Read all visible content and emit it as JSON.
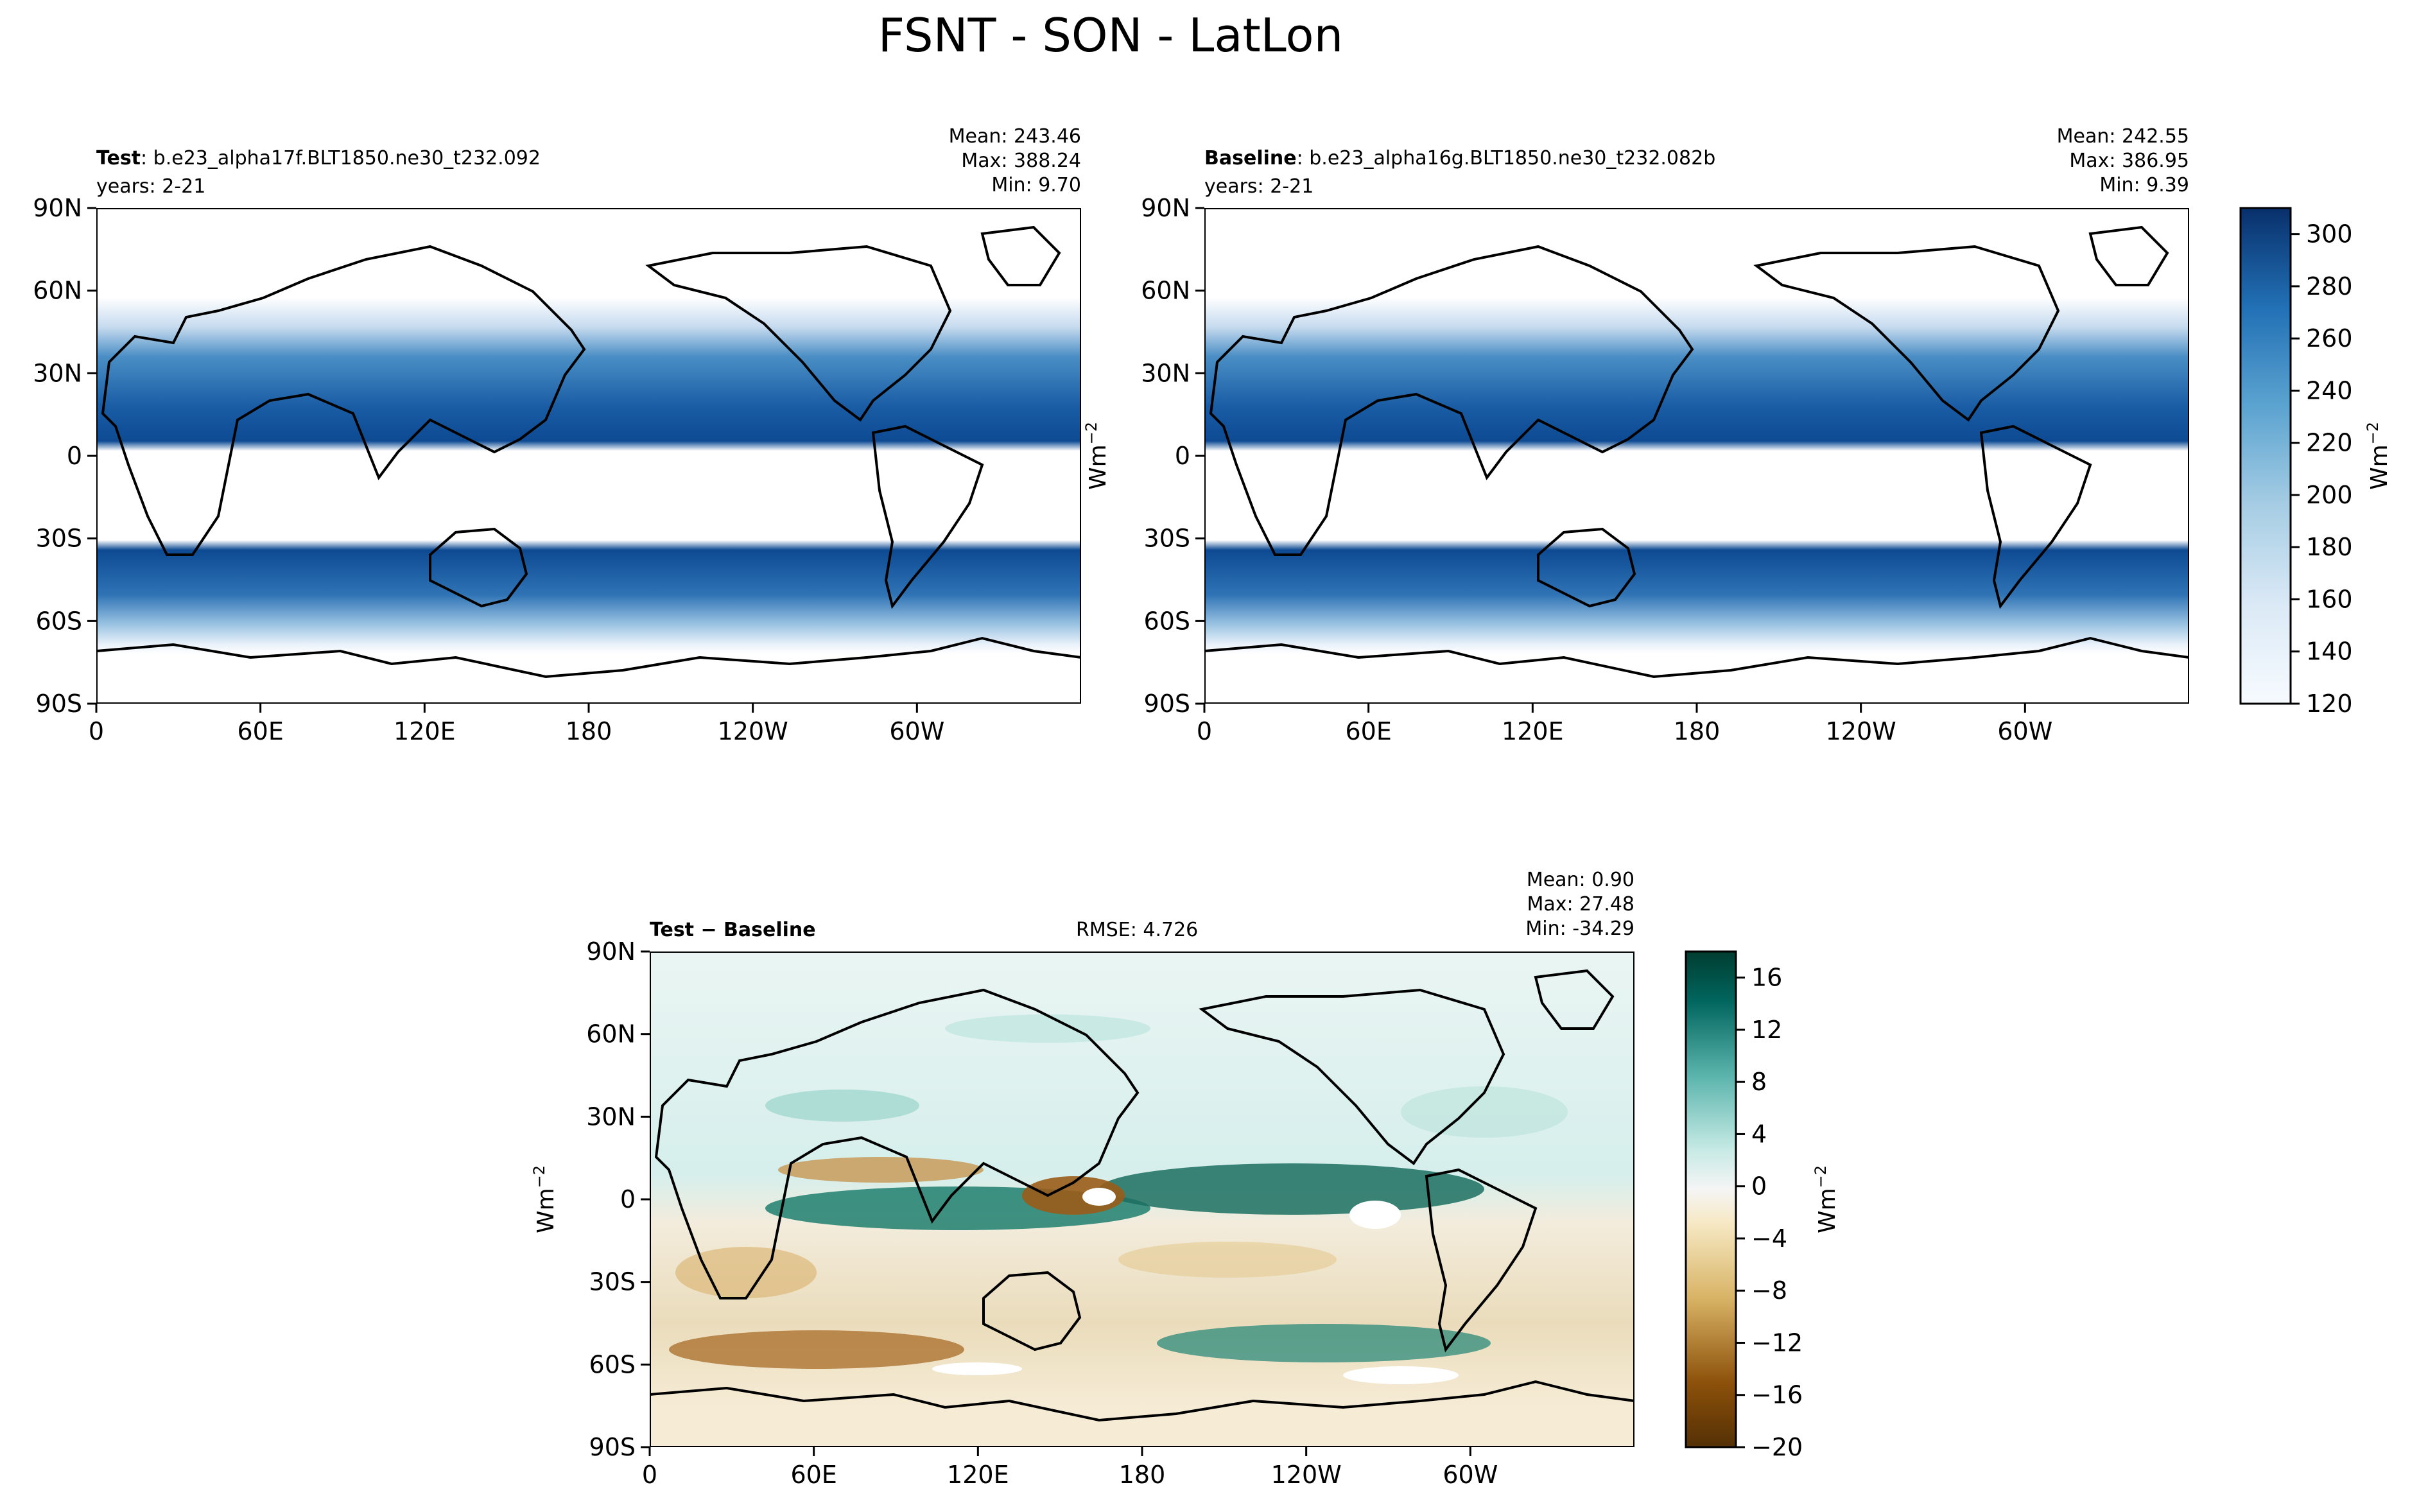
{
  "figure_title": "FSNT - SON - LatLon",
  "chart_data": [
    {
      "type": "heatmap",
      "id": "test",
      "title_bold": "Test",
      "title_rest": ": b.e23_alpha17f.BLT1850.ne30_t232.092",
      "subtitle": "years: 2-21",
      "stats": [
        "Mean: 243.46",
        "Max: 388.24",
        "Min:  9.70"
      ],
      "x_ticks": [
        "0",
        "60E",
        "120E",
        "180",
        "120W",
        "60W"
      ],
      "y_ticks": [
        "90N",
        "60N",
        "30N",
        "0",
        "30S",
        "60S",
        "90S"
      ],
      "colormap": "Blues",
      "units": "Wm-2",
      "mean": 243.46,
      "max": 388.24,
      "min": 9.7
    },
    {
      "type": "heatmap",
      "id": "baseline",
      "title_bold": "Baseline",
      "title_rest": ": b.e23_alpha16g.BLT1850.ne30_t232.082b",
      "subtitle": "years: 2-21",
      "stats": [
        "Mean: 242.55",
        "Max: 386.95",
        "Min:  9.39"
      ],
      "x_ticks": [
        "0",
        "60E",
        "120E",
        "180",
        "120W",
        "60W"
      ],
      "y_ticks": [
        "90N",
        "60N",
        "30N",
        "0",
        "30S",
        "60S",
        "90S"
      ],
      "colormap": "Blues",
      "units": "Wm-2",
      "mean": 242.55,
      "max": 386.95,
      "min": 9.39,
      "colorbar": {
        "ticks": [
          "300",
          "280",
          "260",
          "240",
          "220",
          "200",
          "180",
          "160",
          "140",
          "120"
        ],
        "label": "Wm",
        "label_sup": "−2",
        "range": [
          120,
          310
        ]
      }
    },
    {
      "type": "heatmap",
      "id": "diff",
      "title_bold": "Test − Baseline",
      "rmse": "RMSE: 4.726",
      "stats": [
        "Mean:  0.90",
        "Max: 27.48",
        "Min: -34.29"
      ],
      "x_ticks": [
        "0",
        "60E",
        "120E",
        "180",
        "120W",
        "60W"
      ],
      "y_ticks": [
        "90N",
        "60N",
        "30N",
        "0",
        "30S",
        "60S",
        "90S"
      ],
      "colormap": "BrBG",
      "units": "Wm-2",
      "mean": 0.9,
      "max": 27.48,
      "min": -34.29,
      "colorbar": {
        "ticks": [
          "16",
          "12",
          "8",
          "4",
          "0",
          "−4",
          "−8",
          "−12",
          "−16",
          "−20"
        ],
        "label": "Wm",
        "label_sup": "−2",
        "range": [
          -20,
          18
        ]
      }
    }
  ],
  "ylabel_text": "Wm",
  "ylabel_sup": "−2"
}
